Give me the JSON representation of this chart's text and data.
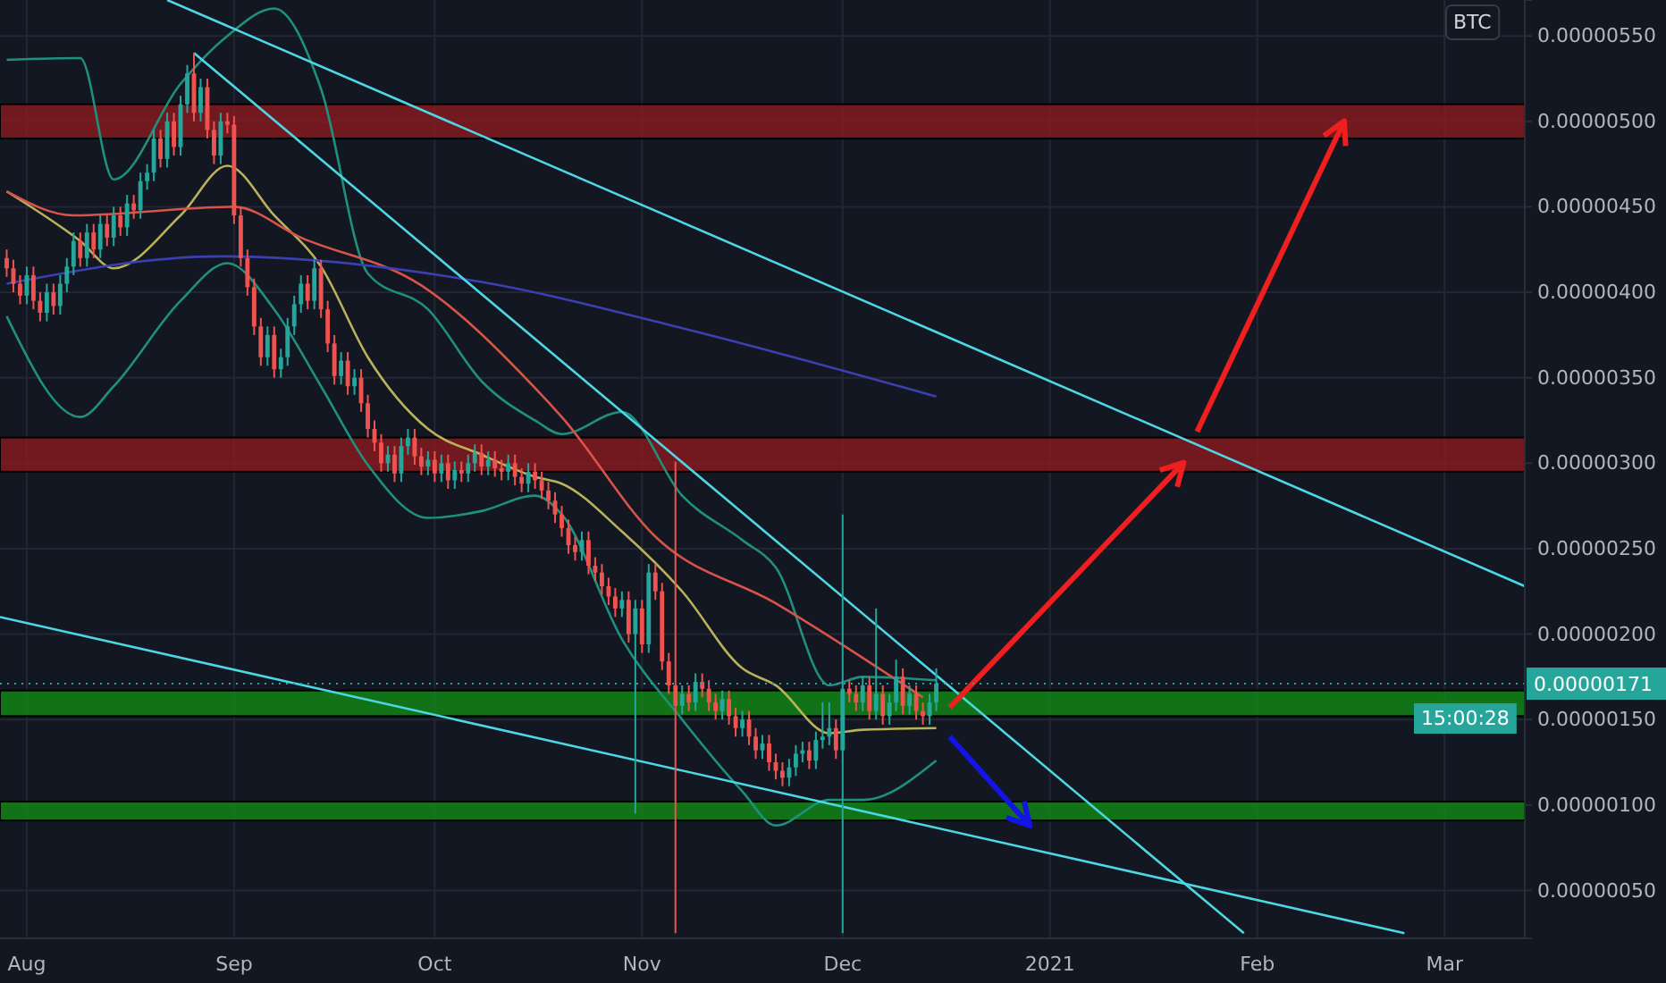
{
  "chart_data": {
    "type": "candlestick",
    "x": [
      "2020-07-29",
      "2020-07-30",
      "2020-07-31",
      "2020-08-01",
      "2020-08-02",
      "2020-08-03",
      "2020-08-04",
      "2020-08-05",
      "2020-08-06",
      "2020-08-07",
      "2020-08-08",
      "2020-08-09",
      "2020-08-10",
      "2020-08-11",
      "2020-08-12",
      "2020-08-13",
      "2020-08-14",
      "2020-08-15",
      "2020-08-16",
      "2020-08-17",
      "2020-08-18",
      "2020-08-19",
      "2020-08-20",
      "2020-08-21",
      "2020-08-22",
      "2020-08-23",
      "2020-08-24",
      "2020-08-25",
      "2020-08-26",
      "2020-08-27",
      "2020-08-28",
      "2020-08-29",
      "2020-08-30",
      "2020-08-31",
      "2020-09-01",
      "2020-09-02",
      "2020-09-03",
      "2020-09-04",
      "2020-09-05",
      "2020-09-06",
      "2020-09-07",
      "2020-09-08",
      "2020-09-09",
      "2020-09-10",
      "2020-09-11",
      "2020-09-12",
      "2020-09-13",
      "2020-09-14",
      "2020-09-15",
      "2020-09-16",
      "2020-09-17",
      "2020-09-18",
      "2020-09-19",
      "2020-09-20",
      "2020-09-21",
      "2020-09-22",
      "2020-09-23",
      "2020-09-24",
      "2020-09-25",
      "2020-09-26",
      "2020-09-27",
      "2020-09-28",
      "2020-09-29",
      "2020-09-30",
      "2020-10-01",
      "2020-10-02",
      "2020-10-03",
      "2020-10-04",
      "2020-10-05",
      "2020-10-06",
      "2020-10-07",
      "2020-10-08",
      "2020-10-09",
      "2020-10-10",
      "2020-10-11",
      "2020-10-12",
      "2020-10-13",
      "2020-10-14",
      "2020-10-15",
      "2020-10-16",
      "2020-10-17",
      "2020-10-18",
      "2020-10-19",
      "2020-10-20",
      "2020-10-21",
      "2020-10-22",
      "2020-10-23",
      "2020-10-24",
      "2020-10-25",
      "2020-10-26",
      "2020-10-27",
      "2020-10-28",
      "2020-10-29",
      "2020-10-30",
      "2020-10-31",
      "2020-11-01",
      "2020-11-02",
      "2020-11-03",
      "2020-11-04",
      "2020-11-05",
      "2020-11-06",
      "2020-11-07",
      "2020-11-08",
      "2020-11-09",
      "2020-11-10",
      "2020-11-11",
      "2020-11-12",
      "2020-11-13",
      "2020-11-14",
      "2020-11-15",
      "2020-11-16",
      "2020-11-17",
      "2020-11-18",
      "2020-11-19",
      "2020-11-20",
      "2020-11-21",
      "2020-11-22",
      "2020-11-23",
      "2020-11-24",
      "2020-11-25",
      "2020-11-26",
      "2020-11-27",
      "2020-11-28",
      "2020-11-29",
      "2020-11-30",
      "2020-12-01",
      "2020-12-02",
      "2020-12-03",
      "2020-12-04",
      "2020-12-05",
      "2020-12-06",
      "2020-12-07",
      "2020-12-08",
      "2020-12-09",
      "2020-12-10",
      "2020-12-11",
      "2020-12-12",
      "2020-12-13",
      "2020-12-14",
      "2020-12-15"
    ],
    "ohlc": [
      [
        4.2e-06,
        4.25e-06,
        4.09e-06,
        4.14e-06
      ],
      [
        4.14e-06,
        4.19e-06,
        4e-06,
        4.05e-06
      ],
      [
        4.05e-06,
        4.1e-06,
        3.93e-06,
        3.98e-06
      ],
      [
        3.98e-06,
        4.15e-06,
        3.93e-06,
        4.1e-06
      ],
      [
        4.1e-06,
        4.15e-06,
        3.9e-06,
        3.95e-06
      ],
      [
        3.95e-06,
        4e-06,
        3.83e-06,
        3.88e-06
      ],
      [
        3.88e-06,
        4.05e-06,
        3.83e-06,
        4e-06
      ],
      [
        4e-06,
        4.05e-06,
        3.87e-06,
        3.92e-06
      ],
      [
        3.92e-06,
        4.1e-06,
        3.87e-06,
        4.05e-06
      ],
      [
        4.05e-06,
        4.2e-06,
        4e-06,
        4.15e-06
      ],
      [
        4.15e-06,
        4.35e-06,
        4.1e-06,
        4.3e-06
      ],
      [
        4.3e-06,
        4.35e-06,
        4.15e-06,
        4.2e-06
      ],
      [
        4.2e-06,
        4.4e-06,
        4.15e-06,
        4.35e-06
      ],
      [
        4.35e-06,
        4.4e-06,
        4.2e-06,
        4.25e-06
      ],
      [
        4.25e-06,
        4.45e-06,
        4.2e-06,
        4.4e-06
      ],
      [
        4.4e-06,
        4.45e-06,
        4.27e-06,
        4.32e-06
      ],
      [
        4.32e-06,
        4.5e-06,
        4.27e-06,
        4.45e-06
      ],
      [
        4.45e-06,
        4.5e-06,
        4.33e-06,
        4.38e-06
      ],
      [
        4.38e-06,
        4.57e-06,
        4.33e-06,
        4.52e-06
      ],
      [
        4.52e-06,
        4.57e-06,
        4.43e-06,
        4.48e-06
      ],
      [
        4.48e-06,
        4.7e-06,
        4.43e-06,
        4.65e-06
      ],
      [
        4.65e-06,
        4.75e-06,
        4.6e-06,
        4.7e-06
      ],
      [
        4.7e-06,
        4.95e-06,
        4.65e-06,
        4.9e-06
      ],
      [
        4.9e-06,
        4.95e-06,
        4.73e-06,
        4.78e-06
      ],
      [
        4.78e-06,
        5.05e-06,
        4.73e-06,
        5e-06
      ],
      [
        5e-06,
        5.05e-06,
        4.8e-06,
        4.85e-06
      ],
      [
        4.85e-06,
        5.15e-06,
        4.8e-06,
        5.1e-06
      ],
      [
        5.1e-06,
        5.33e-06,
        5.05e-06,
        5.28e-06
      ],
      [
        5.28e-06,
        5.4e-06,
        5e-06,
        5.05e-06
      ],
      [
        5.05e-06,
        5.25e-06,
        5e-06,
        5.2e-06
      ],
      [
        5.2e-06,
        5.25e-06,
        4.9e-06,
        4.95e-06
      ],
      [
        4.95e-06,
        5e-06,
        4.75e-06,
        4.8e-06
      ],
      [
        4.8e-06,
        5.05e-06,
        4.75e-06,
        5e-06
      ],
      [
        5e-06,
        5.05e-06,
        4.93e-06,
        4.98e-06
      ],
      [
        4.98e-06,
        5.03e-06,
        4.4e-06,
        4.45e-06
      ],
      [
        4.45e-06,
        4.5e-06,
        4.15e-06,
        4.2e-06
      ],
      [
        4.2e-06,
        4.25e-06,
        3.98e-06,
        4.03e-06
      ],
      [
        4.03e-06,
        4.08e-06,
        3.75e-06,
        3.8e-06
      ],
      [
        3.8e-06,
        3.85e-06,
        3.57e-06,
        3.62e-06
      ],
      [
        3.62e-06,
        3.8e-06,
        3.57e-06,
        3.75e-06
      ],
      [
        3.75e-06,
        3.8e-06,
        3.5e-06,
        3.55e-06
      ],
      [
        3.55e-06,
        3.67e-06,
        3.5e-06,
        3.62e-06
      ],
      [
        3.62e-06,
        3.85e-06,
        3.57e-06,
        3.8e-06
      ],
      [
        3.8e-06,
        3.98e-06,
        3.75e-06,
        3.93e-06
      ],
      [
        3.93e-06,
        4.1e-06,
        3.88e-06,
        4.05e-06
      ],
      [
        4.05e-06,
        4.1e-06,
        3.9e-06,
        3.95e-06
      ],
      [
        3.95e-06,
        4.19e-06,
        3.9e-06,
        4.14e-06
      ],
      [
        4.14e-06,
        4.19e-06,
        3.85e-06,
        3.9e-06
      ],
      [
        3.9e-06,
        3.95e-06,
        3.65e-06,
        3.7e-06
      ],
      [
        3.7e-06,
        3.75e-06,
        3.46e-06,
        3.51e-06
      ],
      [
        3.51e-06,
        3.65e-06,
        3.46e-06,
        3.6e-06
      ],
      [
        3.6e-06,
        3.65e-06,
        3.4e-06,
        3.45e-06
      ],
      [
        3.45e-06,
        3.55e-06,
        3.4e-06,
        3.5e-06
      ],
      [
        3.5e-06,
        3.55e-06,
        3.3e-06,
        3.35e-06
      ],
      [
        3.35e-06,
        3.4e-06,
        3.15e-06,
        3.2e-06
      ],
      [
        3.2e-06,
        3.25e-06,
        3.07e-06,
        3.12e-06
      ],
      [
        3.12e-06,
        3.17e-06,
        2.95e-06,
        3e-06
      ],
      [
        3e-06,
        3.1e-06,
        2.95e-06,
        3.05e-06
      ],
      [
        3.05e-06,
        3.1e-06,
        2.89e-06,
        2.94e-06
      ],
      [
        2.94e-06,
        3.15e-06,
        2.89e-06,
        3.1e-06
      ],
      [
        3.1e-06,
        3.2e-06,
        3.05e-06,
        3.15e-06
      ],
      [
        3.15e-06,
        3.2e-06,
        2.99e-06,
        3.04e-06
      ],
      [
        3.04e-06,
        3.09e-06,
        2.93e-06,
        2.98e-06
      ],
      [
        2.98e-06,
        3.07e-06,
        2.93e-06,
        3.02e-06
      ],
      [
        3.02e-06,
        3.07e-06,
        2.89e-06,
        2.94e-06
      ],
      [
        2.94e-06,
        3.05e-06,
        2.89e-06,
        3e-06
      ],
      [
        3e-06,
        3.05e-06,
        2.85e-06,
        2.9e-06
      ],
      [
        2.9e-06,
        3.01e-06,
        2.85e-06,
        2.96e-06
      ],
      [
        2.96e-06,
        3.01e-06,
        2.89e-06,
        2.94e-06
      ],
      [
        2.94e-06,
        3.05e-06,
        2.89e-06,
        3e-06
      ],
      [
        3e-06,
        3.11e-06,
        2.95e-06,
        3.06e-06
      ],
      [
        3.06e-06,
        3.11e-06,
        2.93e-06,
        2.98e-06
      ],
      [
        2.98e-06,
        3.07e-06,
        2.93e-06,
        3.02e-06
      ],
      [
        3.02e-06,
        3.07e-06,
        2.92e-06,
        2.97e-06
      ],
      [
        2.97e-06,
        3.02e-06,
        2.9e-06,
        2.95e-06
      ],
      [
        2.95e-06,
        3.05e-06,
        2.9e-06,
        3e-06
      ],
      [
        3e-06,
        3.05e-06,
        2.87e-06,
        2.92e-06
      ],
      [
        2.92e-06,
        2.97e-06,
        2.83e-06,
        2.88e-06
      ],
      [
        2.88e-06,
        3e-06,
        2.83e-06,
        2.95e-06
      ],
      [
        2.95e-06,
        3e-06,
        2.85e-06,
        2.9e-06
      ],
      [
        2.9e-06,
        2.95e-06,
        2.79e-06,
        2.84e-06
      ],
      [
        2.84e-06,
        2.89e-06,
        2.73e-06,
        2.78e-06
      ],
      [
        2.78e-06,
        2.83e-06,
        2.65e-06,
        2.7e-06
      ],
      [
        2.7e-06,
        2.75e-06,
        2.57e-06,
        2.62e-06
      ],
      [
        2.62e-06,
        2.67e-06,
        2.47e-06,
        2.52e-06
      ],
      [
        2.52e-06,
        2.57e-06,
        2.43e-06,
        2.48e-06
      ],
      [
        2.48e-06,
        2.6e-06,
        2.43e-06,
        2.55e-06
      ],
      [
        2.55e-06,
        2.6e-06,
        2.35e-06,
        2.4e-06
      ],
      [
        2.4e-06,
        2.45e-06,
        2.31e-06,
        2.36e-06
      ],
      [
        2.36e-06,
        2.41e-06,
        2.23e-06,
        2.28e-06
      ],
      [
        2.28e-06,
        2.33e-06,
        2.17e-06,
        2.22e-06
      ],
      [
        2.22e-06,
        2.27e-06,
        2.1e-06,
        2.15e-06
      ],
      [
        2.15e-06,
        2.25e-06,
        2.1e-06,
        2.2e-06
      ],
      [
        2.2e-06,
        2.25e-06,
        1.95e-06,
        2e-06
      ],
      [
        2e-06,
        2.2e-06,
        9.5e-07,
        2.15e-06
      ],
      [
        2.15e-06,
        2.2e-06,
        1.89e-06,
        1.94e-06
      ],
      [
        1.94e-06,
        2.41e-06,
        1.89e-06,
        2.36e-06
      ],
      [
        2.36e-06,
        2.41e-06,
        2.2e-06,
        2.25e-06
      ],
      [
        2.25e-06,
        2.3e-06,
        1.79e-06,
        1.84e-06
      ],
      [
        1.84e-06,
        1.89e-06,
        1.65e-06,
        1.7e-06
      ],
      [
        1.7e-06,
        3.01e-06,
        2.5e-07,
        1.58e-06
      ],
      [
        1.58e-06,
        1.7e-06,
        1.53e-06,
        1.65e-06
      ],
      [
        1.65e-06,
        1.7e-06,
        1.55e-06,
        1.6e-06
      ],
      [
        1.6e-06,
        1.77e-06,
        1.55e-06,
        1.72e-06
      ],
      [
        1.72e-06,
        1.77e-06,
        1.63e-06,
        1.68e-06
      ],
      [
        1.68e-06,
        1.73e-06,
        1.55e-06,
        1.6e-06
      ],
      [
        1.6e-06,
        1.65e-06,
        1.5e-06,
        1.55e-06
      ],
      [
        1.55e-06,
        1.67e-06,
        1.5e-06,
        1.62e-06
      ],
      [
        1.62e-06,
        1.67e-06,
        1.47e-06,
        1.52e-06
      ],
      [
        1.52e-06,
        1.57e-06,
        1.4e-06,
        1.45e-06
      ],
      [
        1.45e-06,
        1.55e-06,
        1.4e-06,
        1.5e-06
      ],
      [
        1.5e-06,
        1.55e-06,
        1.35e-06,
        1.4e-06
      ],
      [
        1.4e-06,
        1.45e-06,
        1.27e-06,
        1.32e-06
      ],
      [
        1.32e-06,
        1.41e-06,
        1.27e-06,
        1.36e-06
      ],
      [
        1.36e-06,
        1.41e-06,
        1.2e-06,
        1.25e-06
      ],
      [
        1.25e-06,
        1.3e-06,
        1.15e-06,
        1.2e-06
      ],
      [
        1.2e-06,
        1.25e-06,
        1.11e-06,
        1.16e-06
      ],
      [
        1.16e-06,
        1.27e-06,
        1.11e-06,
        1.22e-06
      ],
      [
        1.22e-06,
        1.35e-06,
        1.17e-06,
        1.3e-06
      ],
      [
        1.3e-06,
        1.37e-06,
        1.25e-06,
        1.32e-06
      ],
      [
        1.32e-06,
        1.37e-06,
        1.21e-06,
        1.26e-06
      ],
      [
        1.26e-06,
        1.43e-06,
        1.21e-06,
        1.38e-06
      ],
      [
        1.38e-06,
        1.6e-06,
        1.33e-06,
        1.4e-06
      ],
      [
        1.4e-06,
        1.6e-06,
        1.35e-06,
        1.45e-06
      ],
      [
        1.45e-06,
        1.5e-06,
        1.27e-06,
        1.32e-06
      ],
      [
        1.32e-06,
        2.7e-06,
        2.5e-07,
        1.68e-06
      ],
      [
        1.68e-06,
        1.73e-06,
        1.6e-06,
        1.65e-06
      ],
      [
        1.65e-06,
        1.7e-06,
        1.55e-06,
        1.6e-06
      ],
      [
        1.6e-06,
        1.75e-06,
        1.55e-06,
        1.7e-06
      ],
      [
        1.7e-06,
        1.75e-06,
        1.5e-06,
        1.55e-06
      ],
      [
        1.55e-06,
        2.15e-06,
        1.5e-06,
        1.65e-06
      ],
      [
        1.65e-06,
        1.7e-06,
        1.47e-06,
        1.52e-06
      ],
      [
        1.52e-06,
        1.65e-06,
        1.47e-06,
        1.6e-06
      ],
      [
        1.6e-06,
        1.85e-06,
        1.55e-06,
        1.75e-06
      ],
      [
        1.75e-06,
        1.8e-06,
        1.53e-06,
        1.58e-06
      ],
      [
        1.58e-06,
        1.7e-06,
        1.53e-06,
        1.65e-06
      ],
      [
        1.65e-06,
        1.7e-06,
        1.5e-06,
        1.55e-06
      ],
      [
        1.55e-06,
        1.6e-06,
        1.47e-06,
        1.52e-06
      ],
      [
        1.52e-06,
        1.65e-06,
        1.47e-06,
        1.6e-06
      ],
      [
        1.6e-06,
        1.8e-06,
        1.55e-06,
        1.71e-06
      ]
    ],
    "series": [
      {
        "type": "line",
        "color": "#b8b25a",
        "x": [
          "2020-07-29",
          "2020-08-09",
          "2020-08-14",
          "2020-08-24",
          "2020-08-31",
          "2020-09-07",
          "2020-09-14",
          "2020-09-21",
          "2020-09-30",
          "2020-10-08",
          "2020-10-16",
          "2020-10-20",
          "2020-10-29",
          "2020-11-07",
          "2020-11-16",
          "2020-11-21",
          "2020-11-29",
          "2020-12-04",
          "2020-12-15"
        ],
        "values": [
          4.59e-06,
          4.3e-06,
          4.14e-06,
          4.45e-06,
          4.74e-06,
          4.45e-06,
          4.15e-06,
          3.62e-06,
          3.2e-06,
          3.05e-06,
          2.92e-06,
          2.88e-06,
          2.6e-06,
          2.25e-06,
          1.8e-06,
          1.7e-06,
          1.42e-06,
          1.44e-06,
          1.45e-06
        ]
      },
      {
        "type": "line",
        "color": "#1f8f7e",
        "x": [
          "2020-07-29",
          "2020-08-09",
          "2020-08-14",
          "2020-08-24",
          "2020-08-31",
          "2020-09-07",
          "2020-09-14",
          "2020-09-21",
          "2020-09-30",
          "2020-10-08",
          "2020-10-16",
          "2020-10-20",
          "2020-10-29",
          "2020-11-07",
          "2020-11-16",
          "2020-11-21",
          "2020-11-29",
          "2020-12-04",
          "2020-12-15"
        ],
        "values": [
          3.86e-06,
          3.27e-06,
          3.45e-06,
          3.95e-06,
          4.17e-06,
          3.9e-06,
          3.45e-06,
          2.99e-06,
          2.68e-06,
          2.72e-06,
          2.81e-06,
          2.7e-06,
          1.97e-06,
          1.5e-06,
          1.08e-06,
          8.8e-07,
          1.03e-06,
          1.03e-06,
          1.26e-06
        ]
      },
      {
        "type": "line",
        "color": "#1f8f7e",
        "x": [
          "2020-07-29",
          "2020-08-09",
          "2020-08-14",
          "2020-08-24",
          "2020-08-31",
          "2020-09-07",
          "2020-09-14",
          "2020-09-21",
          "2020-09-30",
          "2020-10-08",
          "2020-10-16",
          "2020-10-20",
          "2020-10-29",
          "2020-11-07",
          "2020-11-16",
          "2020-11-21",
          "2020-11-29",
          "2020-12-04",
          "2020-12-15"
        ],
        "values": [
          5.36e-06,
          5.37e-06,
          4.66e-06,
          5.22e-06,
          5.5e-06,
          5.66e-06,
          5.19e-06,
          4.11e-06,
          3.9e-06,
          3.48e-06,
          3.25e-06,
          3.17e-06,
          3.3e-06,
          2.81e-06,
          2.55e-06,
          2.39e-06,
          1.7e-06,
          1.75e-06,
          1.73e-06
        ]
      },
      {
        "type": "line",
        "color": "#d9534a",
        "x": [
          "2020-07-29",
          "2020-08-08",
          "2020-09-01",
          "2020-09-11",
          "2020-09-29",
          "2020-10-16",
          "2020-10-20",
          "2020-11-03",
          "2020-11-21",
          "2020-12-13"
        ],
        "values": [
          4.59e-06,
          4.45e-06,
          4.5e-06,
          4.32e-06,
          4.04e-06,
          3.44e-06,
          3.27e-06,
          2.57e-06,
          2.18e-06,
          1.63e-06
        ]
      },
      {
        "type": "line",
        "color": "#3b3fb0",
        "x": [
          "2020-07-29",
          "2020-08-30",
          "2020-10-08",
          "2020-11-07",
          "2020-12-15"
        ],
        "values": [
          4.05e-06,
          4.21e-06,
          4.06e-06,
          3.79e-06,
          3.39e-06
        ]
      },
      {
        "type": "line",
        "color": "#4dd6e3",
        "x": [
          "2020-08-22",
          "2021-03-13"
        ],
        "values": [
          5.71e-06,
          2.28e-06
        ]
      },
      {
        "type": "line",
        "color": "#4dd6e3",
        "x": [
          "2020-08-26",
          "2021-01-30"
        ],
        "values": [
          5.4e-06,
          2.5e-07
        ]
      },
      {
        "type": "line",
        "color": "#4dd6e3",
        "x": [
          "2020-07-28",
          "2021-02-23"
        ],
        "values": [
          2.1e-06,
          2.5e-07
        ]
      }
    ],
    "bands": [
      {
        "axis": "y",
        "from": 4.9e-06,
        "to": 5.1e-06,
        "color": "#8b1a1f"
      },
      {
        "axis": "y",
        "from": 2.95e-06,
        "to": 3.15e-06,
        "color": "#8b1a1f"
      },
      {
        "axis": "y",
        "from": 1.52e-06,
        "to": 1.67e-06,
        "color": "#138a17"
      },
      {
        "axis": "y",
        "from": 9.1e-07,
        "to": 1.02e-06,
        "color": "#138a17"
      }
    ],
    "ref_lines": [
      {
        "axis": "y",
        "value": 1.71e-06,
        "label": "0.00000171",
        "color": "#26a69a",
        "line_style": "dotted"
      }
    ],
    "xlim": [
      "2020-07-28",
      "2021-03-13"
    ],
    "xticks": [
      {
        "value": "2020-08-01",
        "label": "Aug"
      },
      {
        "value": "2020-09-01",
        "label": "Sep"
      },
      {
        "value": "2020-10-01",
        "label": "Oct"
      },
      {
        "value": "2020-11-01",
        "label": "Nov"
      },
      {
        "value": "2020-12-01",
        "label": "Dec"
      },
      {
        "value": "2021-01-01",
        "label": "2021"
      },
      {
        "value": "2021-02-01",
        "label": "Feb"
      },
      {
        "value": "2021-03-01",
        "label": "Mar"
      }
    ],
    "ylim": [
      2.2e-07,
      5.71e-06
    ],
    "yticks": [
      {
        "value": 5e-07,
        "label": "0.00000050"
      },
      {
        "value": 1e-06,
        "label": "0.00000100"
      },
      {
        "value": 1.5e-06,
        "label": "0.00000150"
      },
      {
        "value": 2e-06,
        "label": "0.00000200"
      },
      {
        "value": 2.5e-06,
        "label": "0.00000250"
      },
      {
        "value": 3e-06,
        "label": "0.00000300"
      },
      {
        "value": 3.5e-06,
        "label": "0.00000350"
      },
      {
        "value": 4e-06,
        "label": "0.00000400"
      },
      {
        "value": 4.5e-06,
        "label": "0.00000450"
      },
      {
        "value": 5e-06,
        "label": "0.00000500"
      },
      {
        "value": 5.5e-06,
        "label": "0.00000550"
      }
    ],
    "grid": true,
    "annotations": [
      "BTC",
      "15:00:28"
    ]
  }
}
